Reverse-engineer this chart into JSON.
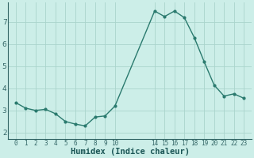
{
  "x": [
    0,
    1,
    2,
    3,
    4,
    5,
    6,
    7,
    8,
    9,
    10,
    14,
    15,
    16,
    17,
    18,
    19,
    20,
    21,
    22,
    23
  ],
  "y": [
    3.35,
    3.1,
    3.0,
    3.05,
    2.85,
    2.5,
    2.38,
    2.3,
    2.7,
    2.75,
    3.2,
    7.5,
    7.25,
    7.5,
    7.2,
    6.3,
    5.2,
    4.15,
    3.65,
    3.75,
    3.55
  ],
  "line_color": "#2a7a6e",
  "marker": "o",
  "marker_size": 2.0,
  "linewidth": 1.0,
  "bg_color": "#cceee8",
  "grid_color": "#aad4cc",
  "xlabel": "Humidex (Indice chaleur)",
  "xlabel_fontsize": 7.5,
  "yticks": [
    2,
    3,
    4,
    5,
    6,
    7
  ],
  "ylim": [
    1.7,
    7.9
  ],
  "xlim": [
    -0.8,
    23.8
  ],
  "xtick_positions": [
    0,
    1,
    2,
    3,
    4,
    5,
    6,
    7,
    8,
    9,
    10,
    14,
    15,
    16,
    17,
    18,
    19,
    20,
    21,
    22,
    23
  ],
  "xtick_labels": [
    "0",
    "1",
    "2",
    "3",
    "4",
    "5",
    "6",
    "7",
    "8",
    "9",
    "10",
    "14",
    "15",
    "16",
    "17",
    "18",
    "19",
    "20",
    "21",
    "22",
    "23"
  ]
}
